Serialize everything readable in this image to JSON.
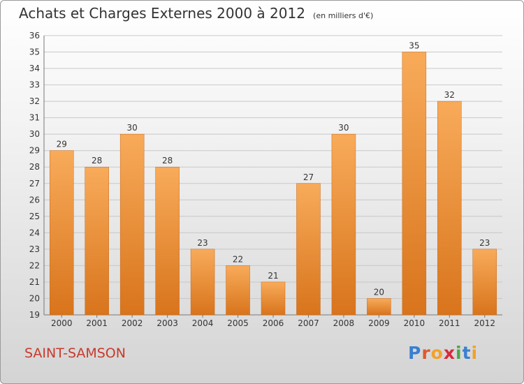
{
  "title": "Achats et Charges Externes 2000 à 2012",
  "unit_label": "(en milliers d'€)",
  "town": "SAINT-SAMSON",
  "brand": {
    "letters": [
      "P",
      "r",
      "o",
      "x",
      "i",
      "t",
      "i"
    ],
    "colors": [
      "#3a7fd0",
      "#e05a2a",
      "#f2a12a",
      "#d82a3a",
      "#4aa84a",
      "#3a7fd0",
      "#f2a12a"
    ]
  },
  "colors": {
    "bar_top": "#f8ab5a",
    "bar_bottom": "#d8741c",
    "bar_edge": "#c8691a",
    "title_text": "#333333",
    "town_text": "#c83a2c",
    "grid": "#c8c8c8"
  },
  "chart_data": {
    "type": "bar",
    "title": "Achats et Charges Externes 2000 à 2012",
    "subtitle": "(en milliers d'€)",
    "categories": [
      "2000",
      "2001",
      "2002",
      "2003",
      "2004",
      "2005",
      "2006",
      "2007",
      "2008",
      "2009",
      "2010",
      "2011",
      "2012"
    ],
    "values": [
      29,
      28,
      30,
      28,
      23,
      22,
      21,
      27,
      30,
      20,
      35,
      32,
      23
    ],
    "ylim": [
      19,
      36
    ],
    "yticks": [
      19,
      20,
      21,
      22,
      23,
      24,
      25,
      26,
      27,
      28,
      29,
      30,
      31,
      32,
      33,
      34,
      35,
      36
    ],
    "xlabel": "",
    "ylabel": "",
    "grid": true,
    "data_labels": true
  }
}
